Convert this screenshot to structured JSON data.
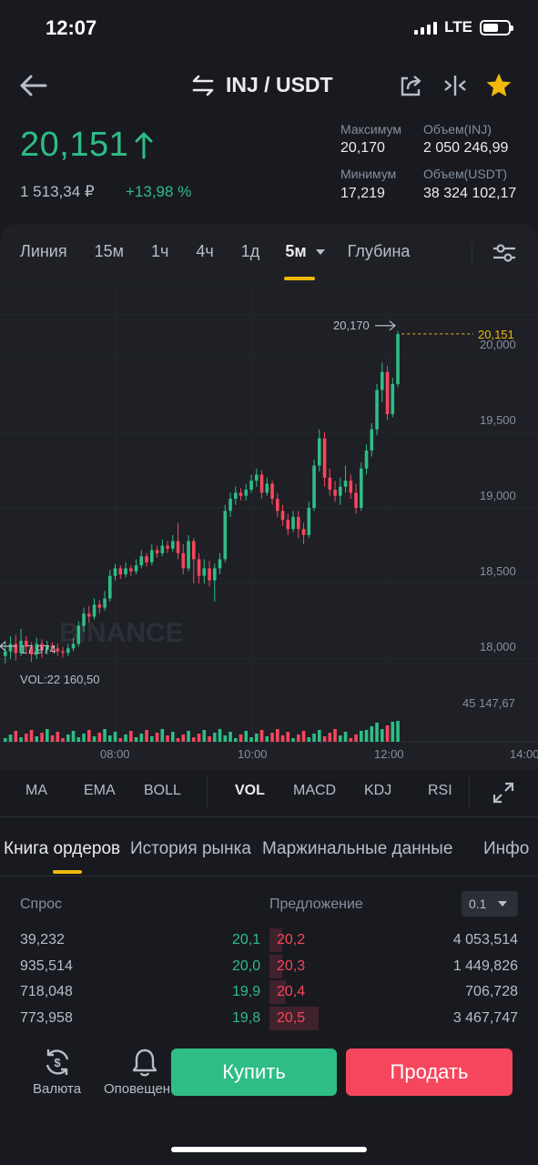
{
  "status": {
    "time": "12:07",
    "network": "LTE"
  },
  "header": {
    "pair": "INJ / USDT"
  },
  "price": {
    "last": "20,151",
    "rub": "1 513,34 ₽",
    "change": "+13,98 %"
  },
  "stats": {
    "high_label": "Максимум",
    "high": "20,170",
    "low_label": "Минимум",
    "low": "17,219",
    "vol_inj_label": "Объем(INJ)",
    "vol_inj": "2 050 246,99",
    "vol_usdt_label": "Объем(USDT)",
    "vol_usdt": "38 324 102,17"
  },
  "chart_tabs": [
    "Линия",
    "15м",
    "1ч",
    "4ч",
    "1д",
    "5м",
    "Глубина"
  ],
  "chart_data": {
    "type": "candlestick",
    "watermark": "BINANCE",
    "y_ticks": [
      "20,000",
      "19,500",
      "19,000",
      "18,500",
      "18,000"
    ],
    "x_ticks": [
      "08:00",
      "10:00",
      "12:00",
      "14:00"
    ],
    "last_price_label": "20,151",
    "high_marker": "20,170",
    "low_marker": "17,974",
    "vol_label": "VOL:22 160,50",
    "vol_axis": "45 147,67",
    "colors": {
      "up": "#2EBD85",
      "down": "#F6465D",
      "last": "#F0B90B"
    }
  },
  "indicators": [
    "MA",
    "EMA",
    "BOLL",
    "VOL",
    "MACD",
    "KDJ",
    "RSI"
  ],
  "order_tabs": [
    "Книга ордеров",
    "История рынка",
    "Маржинальные данные",
    "Инфо"
  ],
  "orderbook": {
    "bid_header": "Спрос",
    "ask_header": "Предложение",
    "precision": "0.1",
    "rows": [
      {
        "bid_qty": "39,232",
        "bid": "20,1",
        "ask": "20,2",
        "ask_qty": "4 053,514"
      },
      {
        "bid_qty": "935,514",
        "bid": "20,0",
        "ask": "20,3",
        "ask_qty": "1 449,826"
      },
      {
        "bid_qty": "718,048",
        "bid": "19,9",
        "ask": "20,4",
        "ask_qty": "706,728"
      },
      {
        "bid_qty": "773,958",
        "bid": "19,8",
        "ask": "20,5",
        "ask_qty": "3 467,747"
      }
    ]
  },
  "bottom": {
    "currency_label": "Валюта",
    "alerts_label": "Оповещен",
    "buy": "Купить",
    "sell": "Продать"
  }
}
